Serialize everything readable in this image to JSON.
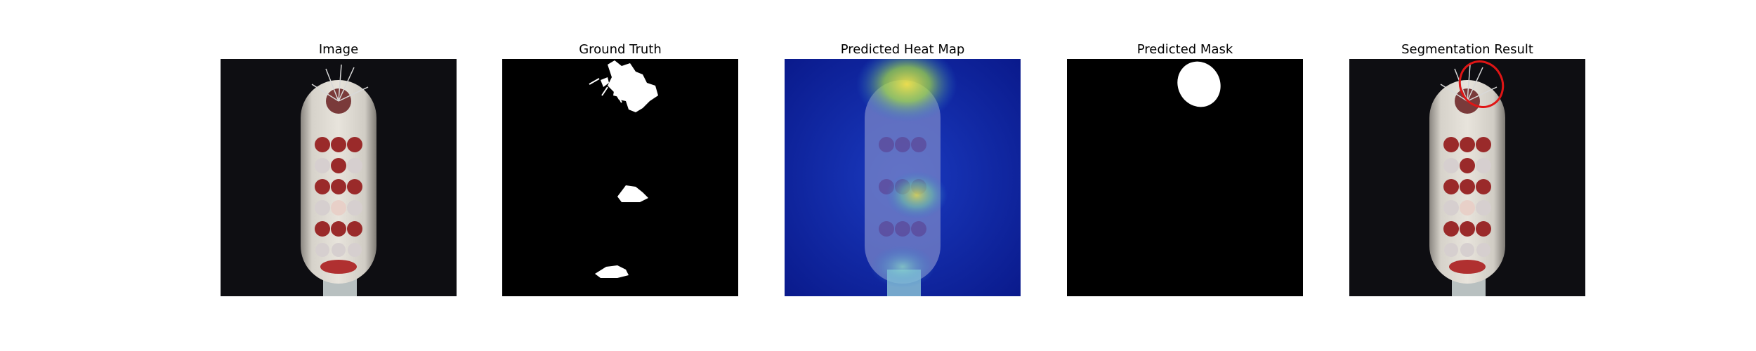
{
  "figure": {
    "panels": [
      {
        "title": "Image"
      },
      {
        "title": "Ground Truth"
      },
      {
        "title": "Predicted Heat Map"
      },
      {
        "title": "Predicted Mask"
      },
      {
        "title": "Segmentation Result"
      }
    ]
  },
  "colors": {
    "background": "#0e0e12",
    "mask_foreground": "#ffffff",
    "mask_background": "#000000",
    "heatmap_low": "#0a1a8c",
    "heatmap_high": "#f2e24a",
    "contour": "#e01515",
    "toothbrush_handle": "#c9c5bd",
    "bristle_red": "#9a2a2a"
  }
}
